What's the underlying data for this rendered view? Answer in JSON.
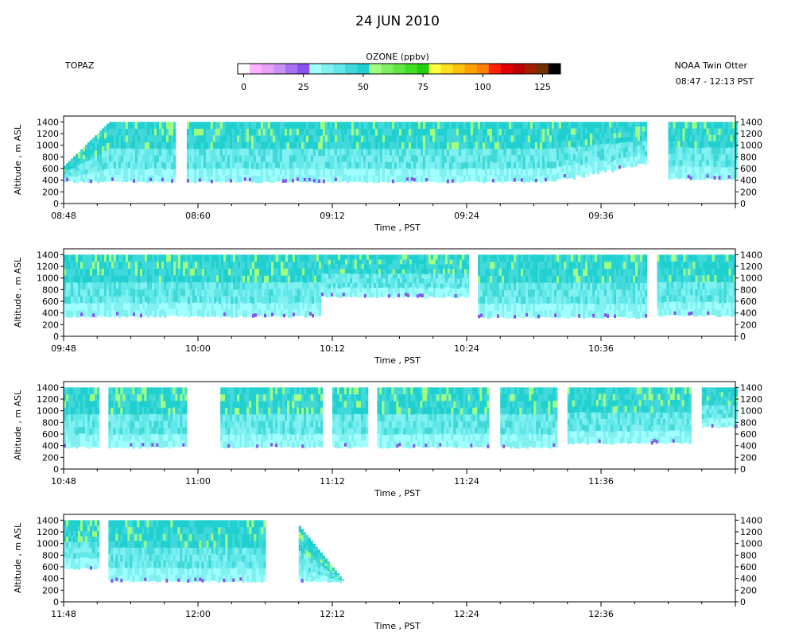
{
  "header": {
    "date_title": "24 JUN 2010",
    "instrument": "TOPAZ",
    "platform": "NOAA Twin Otter",
    "time_span": "08:47 - 12:13 PST"
  },
  "colorbar": {
    "title": "OZONE (ppbv)",
    "range": [
      0,
      130
    ],
    "step": 5,
    "tick_labels": [
      "0",
      "25",
      "50",
      "75",
      "100",
      "125"
    ],
    "tick_values": [
      0,
      25,
      50,
      75,
      100,
      125
    ],
    "colors": [
      "#ffffff",
      "#ffb0ff",
      "#e8a0f8",
      "#c890f8",
      "#a870f0",
      "#8850f0",
      "#a0ffff",
      "#80f0f0",
      "#60e8e8",
      "#40d8d8",
      "#20d0d0",
      "#a0ff80",
      "#80f060",
      "#60e840",
      "#40e020",
      "#20d010",
      "#ffff40",
      "#ffe020",
      "#ffc010",
      "#ffa000",
      "#ff8000",
      "#ff2000",
      "#e00000",
      "#c00000",
      "#a02000",
      "#703000",
      "#000000"
    ]
  },
  "chart_data": [
    {
      "type": "heatmap",
      "xlabel": "Time , PST",
      "ylabel": "Altitude , m ASL",
      "ylim": [
        0,
        1500
      ],
      "yticks": [
        0,
        200,
        400,
        600,
        800,
        1000,
        1200,
        1400
      ],
      "x_range": [
        "08:48",
        "09:48"
      ],
      "xticks": [
        "08:48",
        "08:60",
        "09:12",
        "09:24",
        "09:36"
      ],
      "segments": [
        {
          "start": "08:48",
          "end": "08:58",
          "base_m": 350,
          "ramp_to": "08:52"
        },
        {
          "start": "08:59",
          "end": "09:40",
          "base_m": 350,
          "rising_base_after": "09:32"
        },
        {
          "start": "09:42",
          "end": "09:48",
          "base_m": 400
        }
      ]
    },
    {
      "type": "heatmap",
      "xlabel": "Time , PST",
      "ylabel": "Altitude , m ASL",
      "ylim": [
        0,
        1500
      ],
      "yticks": [
        0,
        200,
        400,
        600,
        800,
        1000,
        1200,
        1400
      ],
      "x_range": [
        "09:48",
        "10:48"
      ],
      "xticks": [
        "09:48",
        "10:00",
        "10:12",
        "10:24",
        "10:36"
      ],
      "segments": [
        {
          "start": "09:48",
          "end": "10:11",
          "base_m": 320
        },
        {
          "start": "10:11",
          "end": "10:24",
          "base_m": 650
        },
        {
          "start": "10:25",
          "end": "10:40",
          "base_m": 300
        },
        {
          "start": "10:41",
          "end": "10:48",
          "base_m": 330
        }
      ]
    },
    {
      "type": "heatmap",
      "xlabel": "Time , PST",
      "ylabel": "Altitude , m ASL",
      "ylim": [
        0,
        1500
      ],
      "yticks": [
        0,
        200,
        400,
        600,
        800,
        1000,
        1200,
        1400
      ],
      "x_range": [
        "10:48",
        "11:48"
      ],
      "xticks": [
        "10:48",
        "11:00",
        "11:12",
        "11:24",
        "11:36"
      ],
      "segments": [
        {
          "start": "10:48",
          "end": "10:51",
          "base_m": 350
        },
        {
          "start": "10:52",
          "end": "10:59",
          "base_m": 350
        },
        {
          "start": "11:02",
          "end": "11:11",
          "base_m": 350
        },
        {
          "start": "11:12",
          "end": "11:15",
          "base_m": 350
        },
        {
          "start": "11:16",
          "end": "11:26",
          "base_m": 350
        },
        {
          "start": "11:27",
          "end": "11:32",
          "base_m": 350
        },
        {
          "start": "11:33",
          "end": "11:44",
          "base_m": 420
        },
        {
          "start": "11:45",
          "end": "11:48",
          "base_m": 700
        }
      ]
    },
    {
      "type": "heatmap",
      "xlabel": "Time , PST",
      "ylabel": "Altitude , m ASL",
      "ylim": [
        0,
        1500
      ],
      "yticks": [
        0,
        200,
        400,
        600,
        800,
        1000,
        1200,
        1400
      ],
      "x_range": [
        "11:48",
        "12:48"
      ],
      "xticks": [
        "11:48",
        "12:00",
        "12:12",
        "12:24",
        "12:36"
      ],
      "segments": [
        {
          "start": "11:48",
          "end": "11:51",
          "base_m": 550
        },
        {
          "start": "11:52",
          "end": "12:06",
          "base_m": 330
        },
        {
          "start": "12:09",
          "end": "12:13",
          "base_m": 330,
          "descending_top": true
        }
      ]
    }
  ]
}
